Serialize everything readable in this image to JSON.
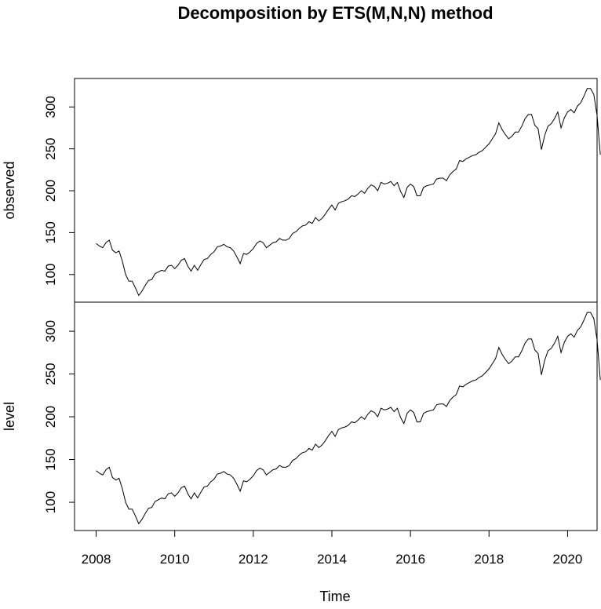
{
  "chart_data": {
    "type": "line",
    "title": "Decomposition by ETS(M,N,N) method",
    "xlabel": "Time",
    "xlim": [
      2007.45,
      2020.75
    ],
    "x_ticks": [
      "2008",
      "2010",
      "2012",
      "2014",
      "2016",
      "2018",
      "2020"
    ],
    "x_tick_values": [
      2008,
      2010,
      2012,
      2014,
      2016,
      2018,
      2020
    ],
    "x_start": 2008.0,
    "x_step": 0.08333,
    "panels": [
      {
        "ylabel": "observed",
        "ylim": [
          67,
          334
        ],
        "y_ticks": [
          "100",
          "150",
          "200",
          "250",
          "300"
        ],
        "y_tick_values": [
          100,
          150,
          200,
          250,
          300
        ]
      },
      {
        "ylabel": "level",
        "ylim": [
          67,
          334
        ],
        "y_ticks": [
          "100",
          "150",
          "200",
          "250",
          "300"
        ],
        "y_tick_values": [
          100,
          150,
          200,
          250,
          300
        ]
      }
    ],
    "series": [
      {
        "values": [
          137,
          134,
          132,
          138,
          141,
          129,
          126,
          128,
          116,
          100,
          92,
          92,
          84,
          75,
          80,
          87,
          93,
          94,
          101,
          103,
          105,
          104,
          110,
          111,
          107,
          111,
          117,
          119,
          110,
          104,
          111,
          105,
          112,
          118,
          119,
          124,
          127,
          133,
          134,
          136,
          133,
          132,
          128,
          121,
          113,
          125,
          124,
          127,
          131,
          137,
          140,
          138,
          132,
          135,
          138,
          139,
          143,
          141,
          141,
          143,
          149,
          151,
          155,
          158,
          159,
          163,
          161,
          168,
          164,
          167,
          172,
          178,
          183,
          177,
          185,
          187,
          188,
          190,
          194,
          193,
          196,
          200,
          197,
          203,
          207,
          205,
          200,
          210,
          208,
          209,
          211,
          206,
          210,
          199,
          192,
          204,
          208,
          205,
          194,
          194,
          204,
          206,
          207,
          208,
          214,
          215,
          215,
          212,
          219,
          223,
          226,
          236,
          235,
          238,
          240,
          242,
          243,
          246,
          248,
          252,
          256,
          262,
          268,
          281,
          273,
          267,
          262,
          265,
          270,
          270,
          277,
          286,
          291,
          291,
          278,
          274,
          249,
          266,
          277,
          280,
          286,
          294,
          275,
          287,
          294,
          297,
          293,
          301,
          305,
          313,
          322,
          322,
          315,
          290,
          243
        ]
      }
    ]
  }
}
